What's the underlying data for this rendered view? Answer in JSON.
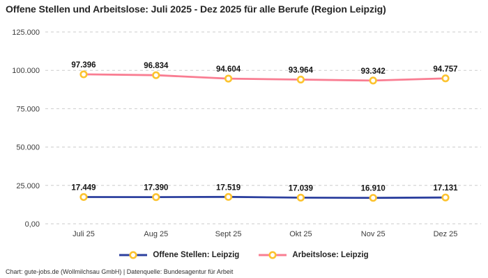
{
  "title": "Offene Stellen und Arbeitslose: Juli 2025 - Dez 2025 für alle Berufe (Region Leipzig)",
  "footer": "Chart: gute-jobs.de (Wollmilchsau GmbH) | Datenquelle: Bundesagentur für Arbeit",
  "colors": {
    "open_positions_line": "#2b3f9e",
    "unemployed_line": "#f97d92",
    "marker_stroke": "#fcc32f",
    "marker_fill": "#ffffff",
    "grid": "#cbcbcb",
    "title_text": "#262626",
    "value_label_text": "#141414",
    "axis_text": "#3c3c3c"
  },
  "chart_data": {
    "type": "line",
    "title": "Offene Stellen und Arbeitslose: Juli 2025 - Dez 2025 für alle Berufe (Region Leipzig)",
    "x": [
      "Juli 25",
      "Aug 25",
      "Sept 25",
      "Okt 25",
      "Nov 25",
      "Dez 25"
    ],
    "series": [
      {
        "name": "Offene Stellen: Leipzig",
        "color": "#2b3f9e",
        "values": [
          17449,
          17390,
          17519,
          17039,
          16910,
          17131
        ],
        "labels": [
          "17.449",
          "17.390",
          "17.519",
          "17.039",
          "16.910",
          "17.131"
        ]
      },
      {
        "name": "Arbeitslose: Leipzig",
        "color": "#f97d92",
        "values": [
          97396,
          96834,
          94604,
          93964,
          93342,
          94757
        ],
        "labels": [
          "97.396",
          "96.834",
          "94.604",
          "93.964",
          "93.342",
          "94.757"
        ]
      }
    ],
    "ylim": [
      0,
      125000
    ],
    "yticks": [
      {
        "value": 0,
        "label": "0,00"
      },
      {
        "value": 25000,
        "label": "25.000"
      },
      {
        "value": 50000,
        "label": "50.000"
      },
      {
        "value": 75000,
        "label": "75.000"
      },
      {
        "value": 100000,
        "label": "100.000"
      },
      {
        "value": 125000,
        "label": "125.000"
      }
    ],
    "grid": "horizontal-dashed",
    "legend_position": "bottom"
  }
}
